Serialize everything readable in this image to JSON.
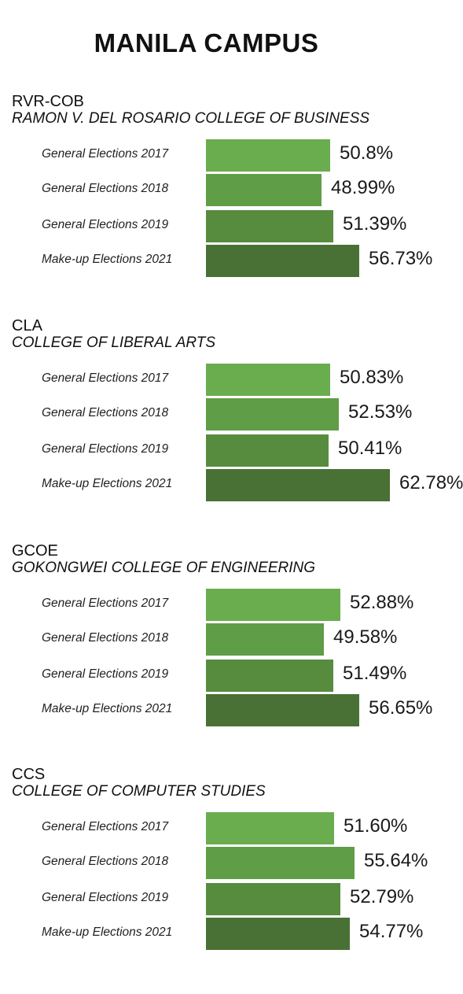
{
  "title": "MANILA CAMPUS",
  "colors": {
    "bar_2017": "#6aad4f",
    "bar_2018": "#609d47",
    "bar_2019": "#578c3f",
    "bar_2021": "#4a7135"
  },
  "chart_data": [
    {
      "type": "bar",
      "abbr": "RVR-COB",
      "name": "RAMON V. DEL ROSARIO COLLEGE OF BUSINESS",
      "categories": [
        "General Elections 2017",
        "General Elections 2018",
        "General Elections 2019",
        "Make-up Elections 2021"
      ],
      "values": [
        50.8,
        48.99,
        51.39,
        56.73
      ],
      "value_labels": [
        "50.8%",
        "48.99%",
        "51.39%",
        "56.73%"
      ]
    },
    {
      "type": "bar",
      "abbr": "CLA",
      "name": "COLLEGE OF LIBERAL ARTS",
      "categories": [
        "General Elections 2017",
        "General Elections 2018",
        "General Elections 2019",
        "Make-up Elections 2021"
      ],
      "values": [
        50.83,
        52.53,
        50.41,
        62.78
      ],
      "value_labels": [
        "50.83%",
        "52.53%",
        "50.41%",
        "62.78%"
      ]
    },
    {
      "type": "bar",
      "abbr": "GCOE",
      "name": "GOKONGWEI COLLEGE OF ENGINEERING",
      "categories": [
        "General Elections 2017",
        "General Elections 2018",
        "General Elections 2019",
        "Make-up Elections 2021"
      ],
      "values": [
        52.88,
        49.58,
        51.49,
        56.65
      ],
      "value_labels": [
        "52.88%",
        "49.58%",
        "51.49%",
        "56.65%"
      ]
    },
    {
      "type": "bar",
      "abbr": "CCS",
      "name": "COLLEGE OF COMPUTER STUDIES",
      "categories": [
        "General Elections 2017",
        "General Elections 2018",
        "General Elections 2019",
        "Make-up Elections 2021"
      ],
      "values": [
        51.6,
        55.64,
        52.79,
        54.77
      ],
      "value_labels": [
        "51.60%",
        "55.64%",
        "52.79%",
        "54.77%"
      ]
    }
  ]
}
